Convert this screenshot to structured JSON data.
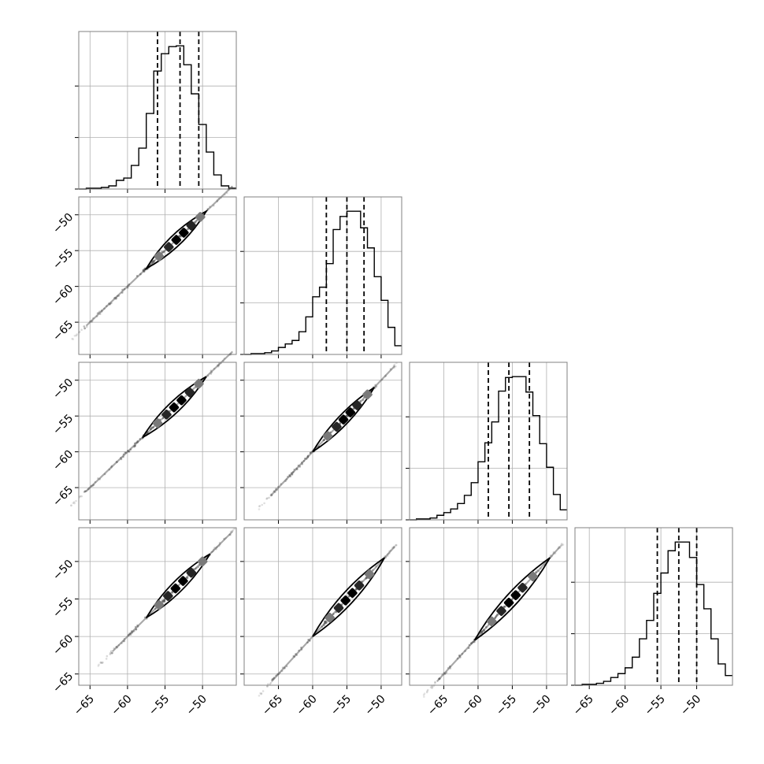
{
  "chart_data": {
    "type": "corner",
    "n_params": 4,
    "tick_values": [
      -65,
      -60,
      -55,
      -50
    ],
    "tick_labels": [
      "−65",
      "−60",
      "−55",
      "−50"
    ],
    "grid": true,
    "histograms": [
      {
        "param": 0,
        "range": [
          -66.5,
          -45.5
        ],
        "bin_edges": [
          -66.5,
          -65.5,
          -64.5,
          -63.5,
          -62.5,
          -61.5,
          -60.5,
          -59.5,
          -58.5,
          -57.5,
          -56.5,
          -55.5,
          -54.5,
          -53.5,
          -52.5,
          -51.5,
          -50.5,
          -49.5,
          -48.5,
          -47.5,
          -46.5,
          -45.5
        ],
        "counts": [
          0,
          1,
          1,
          2,
          4,
          11,
          14,
          30,
          52,
          96,
          150,
          172,
          181,
          182,
          158,
          121,
          82,
          47,
          18,
          4,
          1
        ],
        "quantiles": [
          -56.0,
          -53.0,
          -50.5
        ]
      },
      {
        "param": 1,
        "range": [
          -70.0,
          -47.0
        ],
        "bin_edges": [
          -70.0,
          -69.0,
          -68.0,
          -67.0,
          -66.0,
          -65.0,
          -64.0,
          -63.0,
          -62.0,
          -61.0,
          -60.0,
          -59.0,
          -58.0,
          -57.0,
          -56.0,
          -55.0,
          -54.0,
          -53.0,
          -52.0,
          -51.0,
          -50.0,
          -49.0,
          -48.0,
          -47.0
        ],
        "counts": [
          0,
          1,
          1,
          2,
          4,
          8,
          12,
          16,
          26,
          43,
          66,
          77,
          104,
          143,
          158,
          164,
          164,
          145,
          122,
          89,
          62,
          31,
          10
        ],
        "quantiles": [
          -58.0,
          -55.0,
          -52.5
        ]
      },
      {
        "param": 2,
        "range": [
          -70.0,
          -47.0
        ],
        "bin_edges": [
          -70.0,
          -69.0,
          -68.0,
          -67.0,
          -66.0,
          -65.0,
          -64.0,
          -63.0,
          -62.0,
          -61.0,
          -60.0,
          -59.0,
          -58.0,
          -57.0,
          -56.0,
          -55.0,
          -54.0,
          -53.0,
          -52.0,
          -51.0,
          -50.0,
          -49.0,
          -48.0,
          -47.0
        ],
        "counts": [
          0,
          1,
          1,
          2,
          5,
          8,
          12,
          18,
          27,
          41,
          64,
          85,
          108,
          142,
          157,
          158,
          158,
          141,
          115,
          84,
          58,
          28,
          11
        ],
        "quantiles": [
          -58.5,
          -55.5,
          -52.5
        ]
      },
      {
        "param": 3,
        "range": [
          -67.0,
          -45.0
        ],
        "bin_edges": [
          -67.0,
          -66.0,
          -65.0,
          -64.0,
          -63.0,
          -62.0,
          -61.0,
          -60.0,
          -59.0,
          -58.0,
          -57.0,
          -56.0,
          -55.0,
          -54.0,
          -53.0,
          -52.0,
          -51.0,
          -50.0,
          -49.0,
          -48.0,
          -47.0,
          -46.0,
          -45.0
        ],
        "counts": [
          0,
          1,
          1,
          2,
          4,
          8,
          12,
          18,
          29,
          48,
          67,
          95,
          116,
          139,
          148,
          148,
          132,
          104,
          79,
          48,
          22,
          10
        ],
        "quantiles": [
          -55.5,
          -52.5,
          -50.0
        ]
      }
    ],
    "panels_2d": [
      {
        "row": 1,
        "col": 0,
        "x_range": [
          -66.5,
          -45.5
        ],
        "y_range": [
          -69.5,
          -47.5
        ],
        "tail": [
          -67.5,
          -45.5
        ],
        "contour": {
          "x_start": -57.5,
          "x_end": -49.5,
          "half_width": 0.75
        },
        "blocks": [
          -55.8,
          -54.5,
          -53.5,
          -52.5,
          -51.5,
          -50.3
        ]
      },
      {
        "row": 2,
        "col": 0,
        "x_range": [
          -66.5,
          -45.5
        ],
        "y_range": [
          -69.5,
          -47.5
        ],
        "tail": [
          -67.5,
          -45.5
        ],
        "contour": {
          "x_start": -58.0,
          "x_end": -49.5,
          "half_width": 0.75
        },
        "blocks": [
          -56.0,
          -54.8,
          -53.8,
          -52.8,
          -51.7,
          -50.5
        ]
      },
      {
        "row": 2,
        "col": 1,
        "x_range": [
          -70.0,
          -47.0
        ],
        "y_range": [
          -69.5,
          -47.5
        ],
        "tail": [
          -68.0,
          -47.5
        ],
        "contour": {
          "x_start": -60.0,
          "x_end": -51.0,
          "half_width": 0.75
        },
        "blocks": [
          -57.8,
          -56.5,
          -55.5,
          -54.5,
          -53.5,
          -52.0
        ]
      },
      {
        "row": 3,
        "col": 0,
        "x_range": [
          -66.5,
          -45.5
        ],
        "y_range": [
          -66.5,
          -45.5
        ],
        "tail": [
          -64.0,
          -45.5
        ],
        "contour": {
          "x_start": -57.5,
          "x_end": -49.0,
          "half_width": 0.75
        },
        "blocks": [
          -55.8,
          -54.6,
          -53.6,
          -52.6,
          -51.5,
          -50.0
        ]
      },
      {
        "row": 3,
        "col": 1,
        "x_range": [
          -70.0,
          -47.0
        ],
        "y_range": [
          -66.5,
          -45.5
        ],
        "tail": [
          -68.0,
          -47.5
        ],
        "contour": {
          "x_start": -60.0,
          "x_end": -49.5,
          "half_width": 0.9
        },
        "blocks": [
          -57.5,
          -56.2,
          -55.2,
          -54.2,
          -53.2,
          -51.7
        ]
      },
      {
        "row": 3,
        "col": 2,
        "x_range": [
          -70.0,
          -47.0
        ],
        "y_range": [
          -66.5,
          -45.5
        ],
        "tail": [
          -68.0,
          -47.5
        ],
        "contour": {
          "x_start": -60.5,
          "x_end": -49.5,
          "half_width": 0.9
        },
        "blocks": [
          -58.0,
          -56.6,
          -55.5,
          -54.5,
          -53.5,
          -52.0
        ]
      }
    ]
  },
  "colors": {
    "line": "#000000",
    "grid": "#b0b0b0",
    "frame": "#808080",
    "scatter": "#555555",
    "block_dark": "#000000",
    "block_mid": "#262626",
    "block_light": "#7a7a7a"
  }
}
